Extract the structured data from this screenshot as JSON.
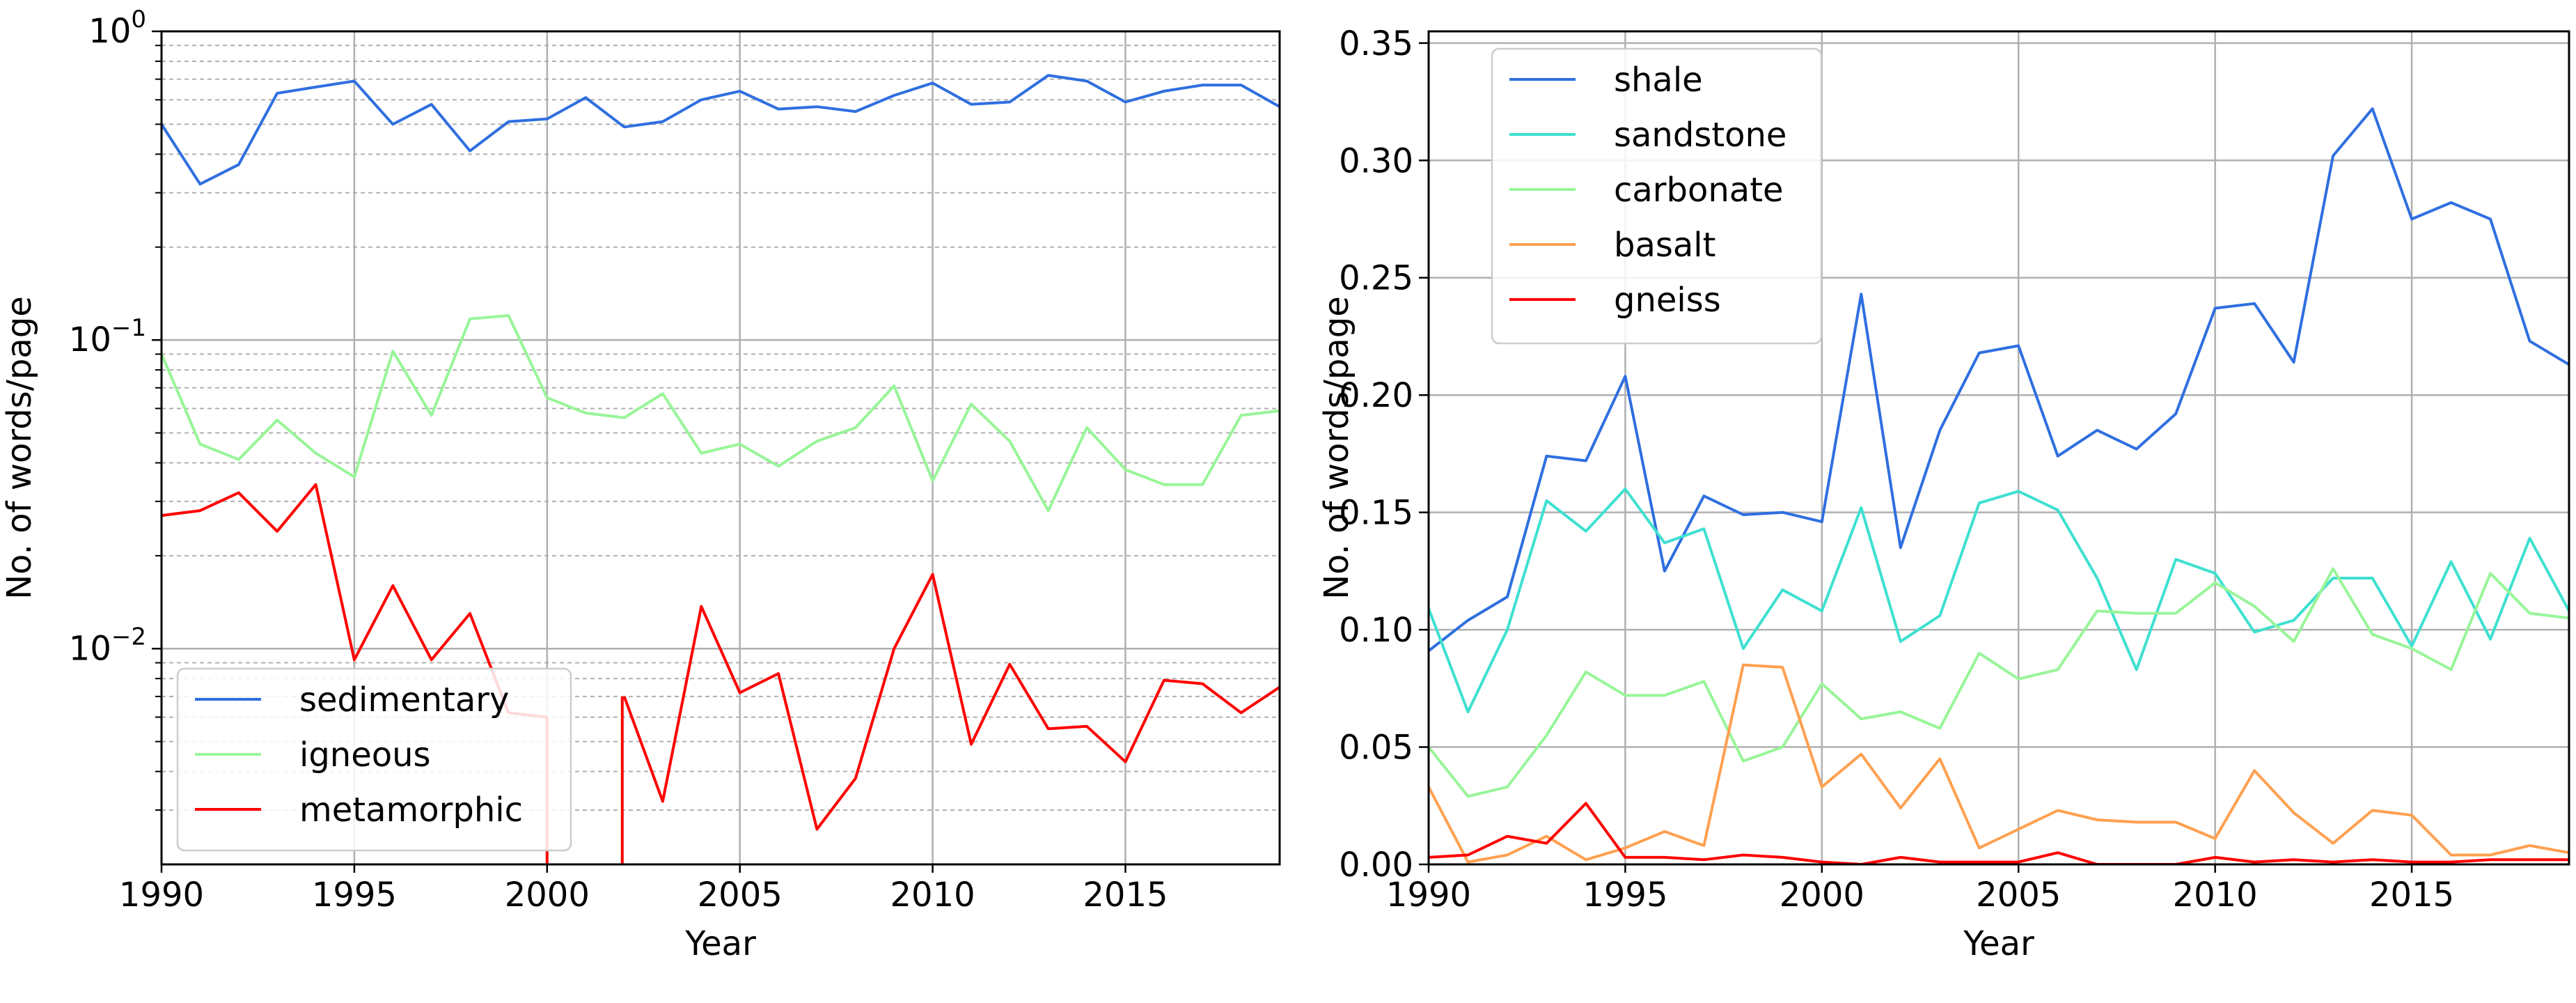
{
  "chart_data": [
    {
      "type": "line",
      "yscale": "log",
      "xlabel": "Year",
      "ylabel": "No. of words/page",
      "xlim": [
        1990,
        2019
      ],
      "ylim": [
        0.002,
        1.0
      ],
      "x_ticks": [
        {
          "value": 1990,
          "label": "1990"
        },
        {
          "value": 1995,
          "label": "1995"
        },
        {
          "value": 2000,
          "label": "2000"
        },
        {
          "value": 2005,
          "label": "2005"
        },
        {
          "value": 2010,
          "label": "2010"
        },
        {
          "value": 2015,
          "label": "2015"
        }
      ],
      "y_ticks": [
        {
          "value": 1.0,
          "base": "10",
          "exp": "0"
        },
        {
          "value": 0.1,
          "base": "10",
          "exp": "−1"
        },
        {
          "value": 0.01,
          "base": "10",
          "exp": "−2"
        }
      ],
      "grid": true,
      "minor_grid_y": true,
      "legend_position": "lower-left",
      "x": [
        1990,
        1991,
        1992,
        1993,
        1994,
        1995,
        1996,
        1997,
        1998,
        1999,
        2000,
        2001,
        2002,
        2003,
        2004,
        2005,
        2006,
        2007,
        2008,
        2009,
        2010,
        2011,
        2012,
        2013,
        2014,
        2015,
        2016,
        2017,
        2018,
        2019
      ],
      "series": [
        {
          "name": "sedimentary",
          "color": "#2f6fe0",
          "values": [
            0.5,
            0.32,
            0.37,
            0.63,
            0.66,
            0.69,
            0.5,
            0.58,
            0.41,
            0.51,
            0.52,
            0.61,
            0.49,
            0.51,
            0.6,
            0.64,
            0.56,
            0.57,
            0.55,
            0.62,
            0.68,
            0.58,
            0.59,
            0.72,
            0.69,
            0.59,
            0.64,
            0.67,
            0.67,
            0.57
          ]
        },
        {
          "name": "igneous",
          "color": "#98f598",
          "values": [
            0.09,
            0.046,
            0.041,
            0.055,
            0.043,
            0.036,
            0.092,
            0.057,
            0.117,
            0.12,
            0.065,
            0.058,
            0.056,
            0.067,
            0.043,
            0.046,
            0.039,
            0.047,
            0.052,
            0.071,
            0.035,
            0.062,
            0.047,
            0.028,
            0.052,
            0.038,
            0.034,
            0.034,
            0.057,
            0.059
          ]
        },
        {
          "name": "metamorphic",
          "color": "#ff0000",
          "values": [
            0.027,
            0.028,
            0.032,
            0.024,
            0.034,
            0.0092,
            0.016,
            0.0092,
            0.013,
            0.0062,
            0.006,
            null,
            0.007,
            0.0032,
            0.0137,
            0.0072,
            0.0083,
            0.0026,
            0.0038,
            0.01,
            0.0174,
            0.0049,
            0.0089,
            0.0055,
            0.0056,
            0.0043,
            0.0079,
            0.0077,
            0.0062,
            0.0075
          ]
        }
      ]
    },
    {
      "type": "line",
      "yscale": "linear",
      "xlabel": "Year",
      "ylabel": "No. of words/page",
      "xlim": [
        1990,
        2019
      ],
      "ylim": [
        0,
        0.355
      ],
      "x_ticks": [
        {
          "value": 1990,
          "label": "1990"
        },
        {
          "value": 1995,
          "label": "1995"
        },
        {
          "value": 2000,
          "label": "2000"
        },
        {
          "value": 2005,
          "label": "2005"
        },
        {
          "value": 2010,
          "label": "2010"
        },
        {
          "value": 2015,
          "label": "2015"
        }
      ],
      "y_ticks": [
        {
          "value": 0.0,
          "label": "0.00"
        },
        {
          "value": 0.05,
          "label": "0.05"
        },
        {
          "value": 0.1,
          "label": "0.10"
        },
        {
          "value": 0.15,
          "label": "0.15"
        },
        {
          "value": 0.2,
          "label": "0.20"
        },
        {
          "value": 0.25,
          "label": "0.25"
        },
        {
          "value": 0.3,
          "label": "0.30"
        },
        {
          "value": 0.35,
          "label": "0.35"
        }
      ],
      "grid": true,
      "legend_position": "top-left",
      "x": [
        1990,
        1991,
        1992,
        1993,
        1994,
        1995,
        1996,
        1997,
        1998,
        1999,
        2000,
        2001,
        2002,
        2003,
        2004,
        2005,
        2006,
        2007,
        2008,
        2009,
        2010,
        2011,
        2012,
        2013,
        2014,
        2015,
        2016,
        2017,
        2018,
        2019
      ],
      "series": [
        {
          "name": "shale",
          "color": "#2f6fe0",
          "values": [
            0.091,
            0.104,
            0.114,
            0.174,
            0.172,
            0.208,
            0.125,
            0.157,
            0.149,
            0.15,
            0.146,
            0.243,
            0.135,
            0.185,
            0.218,
            0.221,
            0.174,
            0.185,
            0.177,
            0.192,
            0.237,
            0.239,
            0.214,
            0.302,
            0.322,
            0.275,
            0.282,
            0.275,
            0.223,
            0.213
          ]
        },
        {
          "name": "sandstone",
          "color": "#3ee0d0",
          "values": [
            0.109,
            0.065,
            0.1,
            0.155,
            0.142,
            0.16,
            0.137,
            0.143,
            0.092,
            0.117,
            0.108,
            0.152,
            0.095,
            0.106,
            0.154,
            0.159,
            0.151,
            0.122,
            0.083,
            0.13,
            0.124,
            0.099,
            0.104,
            0.122,
            0.122,
            0.093,
            0.129,
            0.096,
            0.139,
            0.108
          ]
        },
        {
          "name": "carbonate",
          "color": "#98f598",
          "values": [
            0.05,
            0.029,
            0.033,
            0.055,
            0.082,
            0.072,
            0.072,
            0.078,
            0.044,
            0.05,
            0.077,
            0.062,
            0.065,
            0.058,
            0.09,
            0.079,
            0.083,
            0.108,
            0.107,
            0.107,
            0.12,
            0.11,
            0.095,
            0.126,
            0.098,
            0.092,
            0.083,
            0.124,
            0.107,
            0.105
          ]
        },
        {
          "name": "basalt",
          "color": "#ffa050",
          "values": [
            0.033,
            0.001,
            0.004,
            0.012,
            0.002,
            0.007,
            0.014,
            0.008,
            0.085,
            0.084,
            0.033,
            0.047,
            0.024,
            0.045,
            0.007,
            0.015,
            0.023,
            0.019,
            0.018,
            0.018,
            0.011,
            0.04,
            0.022,
            0.009,
            0.023,
            0.021,
            0.004,
            0.004,
            0.008,
            0.005
          ]
        },
        {
          "name": "gneiss",
          "color": "#ff0000",
          "values": [
            0.003,
            0.004,
            0.012,
            0.009,
            0.026,
            0.003,
            0.003,
            0.002,
            0.004,
            0.003,
            0.001,
            0.0,
            0.003,
            0.001,
            0.001,
            0.001,
            0.005,
            0.0,
            0.0,
            0.0,
            0.003,
            0.001,
            0.002,
            0.001,
            0.002,
            0.001,
            0.001,
            0.002,
            0.002,
            0.002
          ]
        }
      ]
    }
  ]
}
